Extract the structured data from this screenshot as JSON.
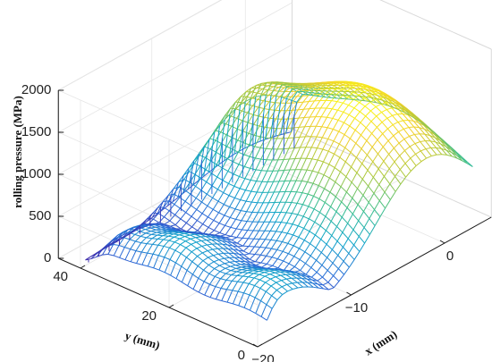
{
  "chart_data": {
    "type": "surface-mesh",
    "title": "",
    "zlabel": "rolling pressure (MPa)",
    "xlabel": "x (mm)",
    "ylabel": "y (mm)",
    "xlim": [
      -20,
      5
    ],
    "ylim": [
      0,
      45
    ],
    "zlim": [
      0,
      2000
    ],
    "x_ticks": [
      "−20",
      "−10",
      "0"
    ],
    "x_tick_values": [
      -20,
      -10,
      0
    ],
    "y_ticks": [
      "0",
      "20",
      "40"
    ],
    "y_tick_values": [
      0,
      20,
      40
    ],
    "z_ticks": [
      "0",
      "500",
      "1000",
      "1500",
      "2000"
    ],
    "z_tick_values": [
      0,
      500,
      1000,
      1500,
      2000
    ],
    "grid": true,
    "colormap": "parula",
    "colormap_stops": [
      "#3e26a8",
      "#2b6bd8",
      "#0ea5c9",
      "#3cbf8c",
      "#a9c83d",
      "#f2d02c",
      "#f9fb15"
    ],
    "mesh_x_range": [
      -19,
      3
    ],
    "mesh_y_range": [
      0,
      41
    ],
    "peak_pressure": 1580,
    "peak_location": {
      "x": -2,
      "y": 18
    }
  }
}
